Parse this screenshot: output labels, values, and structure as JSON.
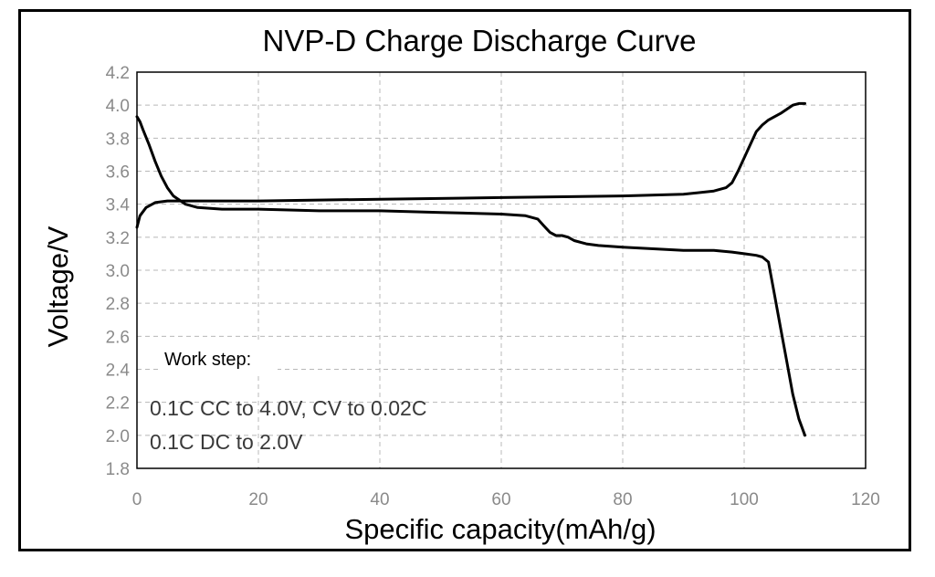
{
  "chart_data": {
    "type": "line",
    "title": "NVP-D Charge Discharge Curve",
    "xlabel": "Specific capacity(mAh/g)",
    "ylabel": "Voltage/V",
    "xlim": [
      0,
      120
    ],
    "ylim": [
      1.8,
      4.2
    ],
    "xticks": [
      "0",
      "20",
      "40",
      "60",
      "80",
      "100",
      "120"
    ],
    "yticks": [
      "4.2",
      "4.0",
      "3.8",
      "3.6",
      "3.4",
      "3.2",
      "3.0",
      "2.8",
      "2.6",
      "2.4",
      "2.2",
      "2.0",
      "1.8"
    ],
    "grid": true,
    "colors": {
      "line": "#000000",
      "grid": "#b8b8b8",
      "tick": "#8a8a8a"
    },
    "annotations": {
      "heading": "Work step:",
      "lines": [
        "0.1C CC to 4.0V, CV to 0.02C",
        "0.1C DC to 2.0V"
      ]
    },
    "series": [
      {
        "x": [
          0,
          0.5,
          1.5,
          3,
          5,
          8,
          12,
          20,
          40,
          60,
          80,
          90,
          95,
          97,
          98,
          99,
          100,
          101,
          102,
          103,
          104,
          106,
          108,
          109,
          110
        ],
        "y": [
          3.26,
          3.33,
          3.38,
          3.41,
          3.42,
          3.42,
          3.42,
          3.42,
          3.43,
          3.44,
          3.45,
          3.46,
          3.48,
          3.5,
          3.53,
          3.6,
          3.68,
          3.76,
          3.84,
          3.88,
          3.91,
          3.95,
          4.0,
          4.01,
          4.01
        ]
      },
      {
        "x": [
          0,
          0.5,
          1,
          2,
          3,
          4,
          5,
          6,
          8,
          10,
          14,
          20,
          30,
          40,
          50,
          60,
          64,
          66,
          67,
          68,
          69,
          70,
          71,
          72,
          74,
          76,
          80,
          85,
          90,
          95,
          98,
          100,
          102,
          103,
          104,
          105,
          106,
          107,
          108,
          109,
          110
        ],
        "y": [
          3.93,
          3.9,
          3.85,
          3.76,
          3.66,
          3.57,
          3.5,
          3.45,
          3.4,
          3.38,
          3.37,
          3.37,
          3.36,
          3.36,
          3.35,
          3.34,
          3.33,
          3.31,
          3.27,
          3.23,
          3.21,
          3.21,
          3.2,
          3.18,
          3.16,
          3.15,
          3.14,
          3.13,
          3.12,
          3.12,
          3.11,
          3.1,
          3.09,
          3.08,
          3.05,
          2.85,
          2.65,
          2.45,
          2.25,
          2.1,
          2.0
        ]
      }
    ]
  }
}
